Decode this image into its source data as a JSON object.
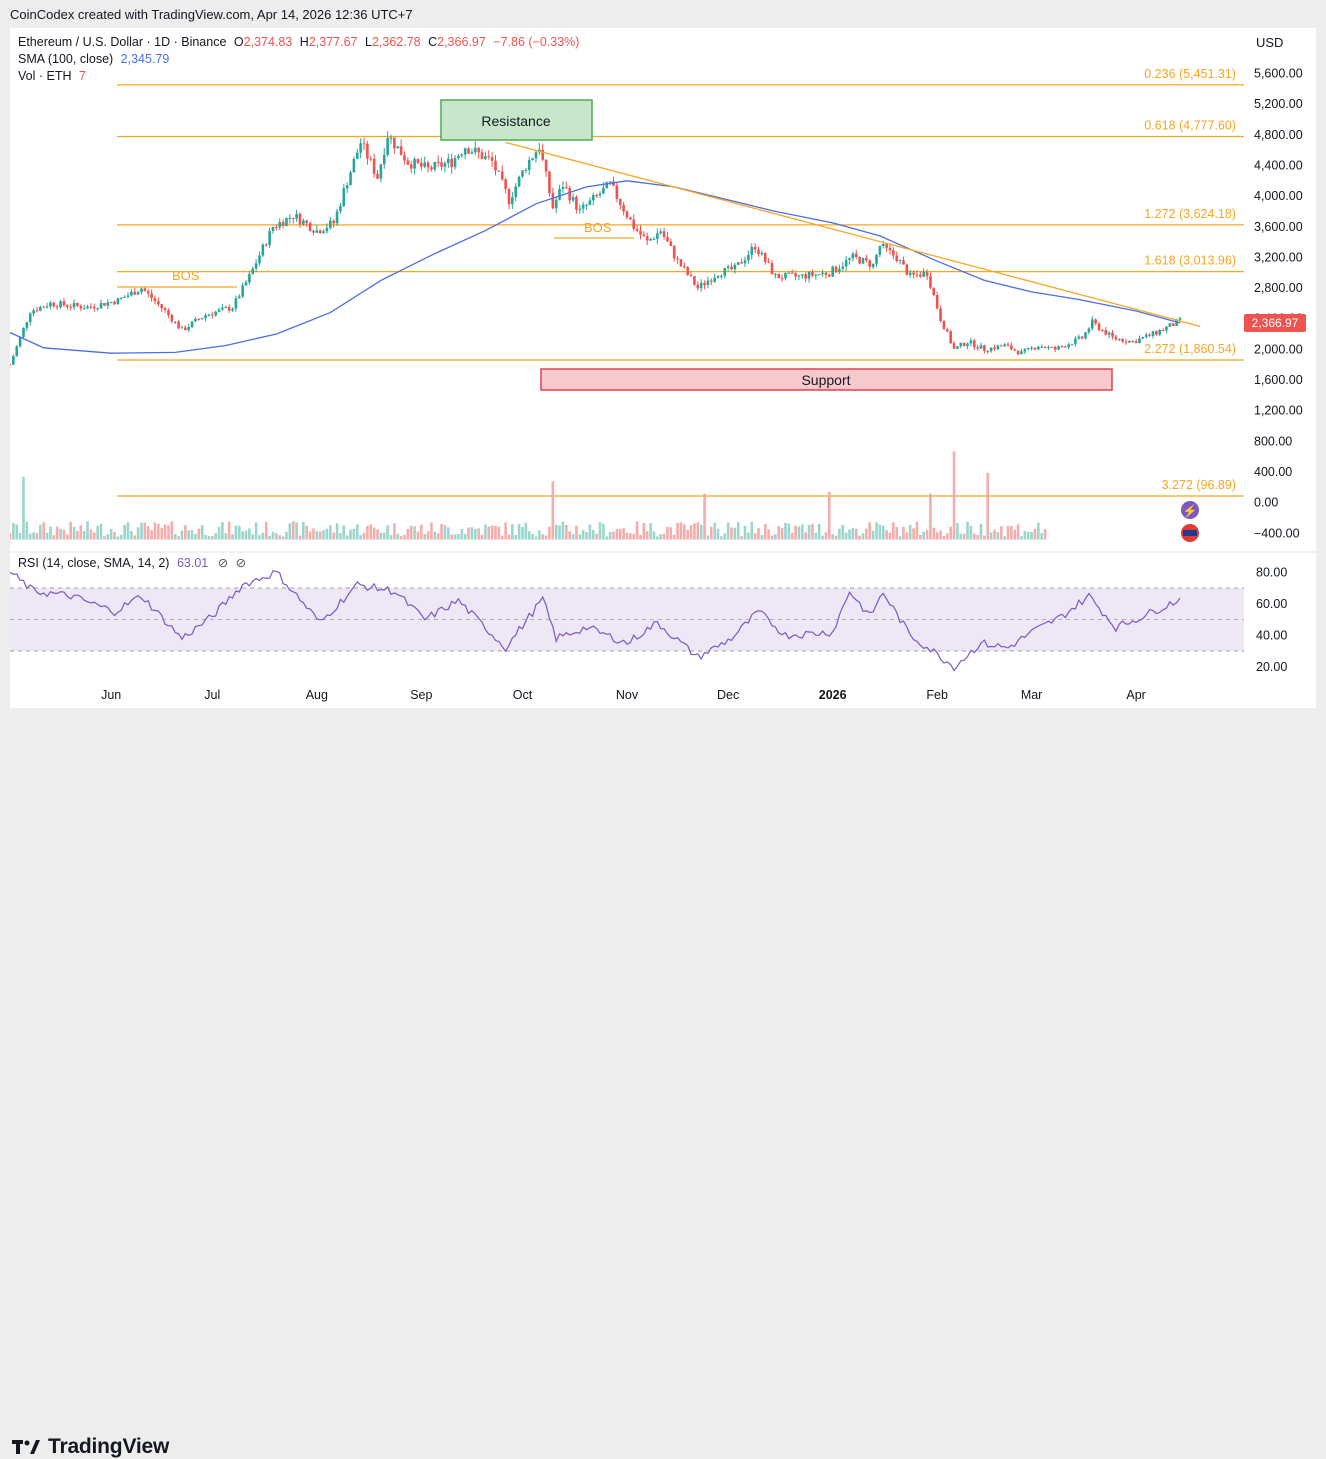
{
  "caption": "CoinCodex created with TradingView.com, Apr 14, 2026 12:36 UTC+7",
  "legend": {
    "symbol": "Ethereum / U.S. Dollar · 1D · Binance",
    "o_label": "O",
    "o_value": "2,374.83",
    "h_label": "H",
    "h_value": "2,377.67",
    "l_label": "L",
    "l_value": "2,362.78",
    "c_label": "C",
    "c_value": "2,366.97",
    "change": "−7.86 (−0.33%)",
    "sma_label": "SMA (100, close)",
    "sma_value": "2,345.79",
    "vol_label": "Vol · ETH",
    "vol_value": "7"
  },
  "currency": "USD",
  "price_tag": "2,366.97",
  "rsi_legend": {
    "label": "RSI (14, close, SMA, 14, 2)",
    "value": "63.01"
  },
  "fib_levels": [
    {
      "label": "0.236 (5,451.31)",
      "value": 5451.31
    },
    {
      "label": "0.618 (4,777.60)",
      "value": 4777.6
    },
    {
      "label": "1.272 (3,624.18)",
      "value": 3624.18
    },
    {
      "label": "1.618 (3,013.96)",
      "value": 3013.96
    },
    {
      "label": "2.272 (1,860.54)",
      "value": 1860.54
    }
  ],
  "vol_fib": {
    "label": "3.272 (96.89)",
    "value": 96.89
  },
  "annotations": {
    "resistance": "Resistance",
    "support": "Support",
    "bos1": "BOS",
    "bos2": "BOS"
  },
  "colors": {
    "up": "#26a69a",
    "down": "#ef5350",
    "sma": "#4a6fe3",
    "fib": "#f5a623",
    "rsi": "#7e57c2",
    "support_fill": "#f8c9cc",
    "support_border": "#e0414f",
    "resistance_fill": "#c8e6c9",
    "resistance_border": "#4caf50"
  },
  "logo_text": "TradingView",
  "chart_data": {
    "type": "candlestick",
    "instrument": "ETH/USD",
    "y_ticks": [
      "5,600.00",
      "5,200.00",
      "4,800.00",
      "4,400.00",
      "4,000.00",
      "3,600.00",
      "3,200.00",
      "2,800.00",
      "2,400.00",
      "2,000.00",
      "1,600.00",
      "1,200.00",
      "800.00",
      "400.00",
      "0.00",
      "−400.00"
    ],
    "ylim": [
      -400,
      5600
    ],
    "rsi_ticks": [
      "80.00",
      "60.00",
      "40.00",
      "20.00"
    ],
    "rsi_levels": [
      70,
      50,
      30
    ],
    "x_ticks": [
      {
        "label": "Jun",
        "date": "2025-06-01"
      },
      {
        "label": "Jul",
        "date": "2025-07-01"
      },
      {
        "label": "Aug",
        "date": "2025-08-01"
      },
      {
        "label": "Sep",
        "date": "2025-09-01"
      },
      {
        "label": "Oct",
        "date": "2025-10-01"
      },
      {
        "label": "Nov",
        "date": "2025-11-01"
      },
      {
        "label": "Dec",
        "date": "2025-12-01"
      },
      {
        "label": "2026",
        "date": "2026-01-01",
        "bold": true
      },
      {
        "label": "Feb",
        "date": "2026-02-01"
      },
      {
        "label": "Mar",
        "date": "2026-03-01"
      },
      {
        "label": "Apr",
        "date": "2026-04-01"
      }
    ],
    "xlim": [
      "2025-05-02",
      "2026-05-03"
    ],
    "price_path": [
      [
        "2025-05-02",
        1800
      ],
      [
        "2025-05-08",
        2500
      ],
      [
        "2025-05-14",
        2600
      ],
      [
        "2025-05-25",
        2550
      ],
      [
        "2025-06-03",
        2640
      ],
      [
        "2025-06-10",
        2800
      ],
      [
        "2025-06-17",
        2500
      ],
      [
        "2025-06-22",
        2250
      ],
      [
        "2025-06-29",
        2450
      ],
      [
        "2025-07-07",
        2550
      ],
      [
        "2025-07-12",
        2950
      ],
      [
        "2025-07-19",
        3600
      ],
      [
        "2025-07-25",
        3750
      ],
      [
        "2025-08-01",
        3550
      ],
      [
        "2025-08-06",
        3650
      ],
      [
        "2025-08-10",
        4200
      ],
      [
        "2025-08-14",
        4700
      ],
      [
        "2025-08-19",
        4250
      ],
      [
        "2025-08-22",
        4800
      ],
      [
        "2025-08-28",
        4450
      ],
      [
        "2025-09-03",
        4350
      ],
      [
        "2025-09-10",
        4450
      ],
      [
        "2025-09-14",
        4650
      ],
      [
        "2025-09-22",
        4450
      ],
      [
        "2025-09-27",
        3950
      ],
      [
        "2025-10-02",
        4400
      ],
      [
        "2025-10-06",
        4650
      ],
      [
        "2025-10-10",
        3850
      ],
      [
        "2025-10-13",
        4150
      ],
      [
        "2025-10-18",
        3800
      ],
      [
        "2025-10-27",
        4150
      ],
      [
        "2025-11-03",
        3600
      ],
      [
        "2025-11-07",
        3400
      ],
      [
        "2025-11-11",
        3550
      ],
      [
        "2025-11-16",
        3150
      ],
      [
        "2025-11-22",
        2800
      ],
      [
        "2025-11-28",
        3000
      ],
      [
        "2025-12-03",
        3050
      ],
      [
        "2025-12-09",
        3350
      ],
      [
        "2025-12-15",
        2950
      ],
      [
        "2025-12-22",
        2950
      ],
      [
        "2025-12-31",
        3000
      ],
      [
        "2026-01-07",
        3200
      ],
      [
        "2026-01-13",
        3100
      ],
      [
        "2026-01-15",
        3350
      ],
      [
        "2026-01-20",
        3200
      ],
      [
        "2026-01-24",
        2950
      ],
      [
        "2026-01-29",
        3000
      ],
      [
        "2026-02-02",
        2400
      ],
      [
        "2026-02-06",
        2000
      ],
      [
        "2026-02-10",
        2100
      ],
      [
        "2026-02-15",
        2000
      ],
      [
        "2026-02-21",
        2050
      ],
      [
        "2026-02-26",
        1950
      ],
      [
        "2026-03-03",
        2050
      ],
      [
        "2026-03-08",
        2000
      ],
      [
        "2026-03-16",
        2150
      ],
      [
        "2026-03-19",
        2350
      ],
      [
        "2026-03-25",
        2150
      ],
      [
        "2026-03-31",
        2100
      ],
      [
        "2026-04-06",
        2200
      ],
      [
        "2026-04-14",
        2366.97
      ]
    ],
    "sma_path": [
      [
        "2025-05-02",
        2220
      ],
      [
        "2025-05-12",
        2020
      ],
      [
        "2025-06-01",
        1950
      ],
      [
        "2025-06-20",
        1960
      ],
      [
        "2025-07-05",
        2050
      ],
      [
        "2025-07-20",
        2200
      ],
      [
        "2025-08-05",
        2480
      ],
      [
        "2025-08-20",
        2900
      ],
      [
        "2025-09-05",
        3250
      ],
      [
        "2025-09-20",
        3550
      ],
      [
        "2025-10-05",
        3900
      ],
      [
        "2025-10-20",
        4120
      ],
      [
        "2025-11-01",
        4200
      ],
      [
        "2025-11-15",
        4120
      ],
      [
        "2025-12-01",
        3950
      ],
      [
        "2025-12-15",
        3800
      ],
      [
        "2026-01-01",
        3650
      ],
      [
        "2026-01-15",
        3480
      ],
      [
        "2026-02-01",
        3150
      ],
      [
        "2026-02-15",
        2900
      ],
      [
        "2026-03-01",
        2750
      ],
      [
        "2026-03-15",
        2650
      ],
      [
        "2026-04-01",
        2500
      ],
      [
        "2026-04-14",
        2345.79
      ]
    ],
    "trendline": [
      [
        "2025-09-26",
        4700
      ],
      [
        "2026-04-20",
        2300
      ]
    ],
    "volume_spikes": [
      [
        "2025-05-06",
        820
      ],
      [
        "2025-10-10",
        760
      ],
      [
        "2025-11-24",
        600
      ],
      [
        "2025-12-31",
        620
      ],
      [
        "2026-01-30",
        600
      ],
      [
        "2026-02-06",
        1150
      ],
      [
        "2026-02-16",
        870
      ]
    ],
    "rsi_path": [
      [
        "2025-05-02",
        80
      ],
      [
        "2025-05-09",
        68
      ],
      [
        "2025-05-20",
        65
      ],
      [
        "2025-06-02",
        55
      ],
      [
        "2025-06-10",
        65
      ],
      [
        "2025-06-22",
        38
      ],
      [
        "2025-07-01",
        52
      ],
      [
        "2025-07-10",
        72
      ],
      [
        "2025-07-20",
        80
      ],
      [
        "2025-08-02",
        48
      ],
      [
        "2025-08-13",
        72
      ],
      [
        "2025-08-24",
        68
      ],
      [
        "2025-09-02",
        50
      ],
      [
        "2025-09-12",
        62
      ],
      [
        "2025-09-26",
        32
      ],
      [
        "2025-10-07",
        63
      ],
      [
        "2025-10-11",
        38
      ],
      [
        "2025-10-20",
        45
      ],
      [
        "2025-11-01",
        35
      ],
      [
        "2025-11-10",
        48
      ],
      [
        "2025-11-22",
        26
      ],
      [
        "2025-12-02",
        38
      ],
      [
        "2025-12-10",
        55
      ],
      [
        "2025-12-18",
        40
      ],
      [
        "2026-01-01",
        42
      ],
      [
        "2026-01-06",
        68
      ],
      [
        "2026-01-12",
        52
      ],
      [
        "2026-01-16",
        67
      ],
      [
        "2026-01-24",
        40
      ],
      [
        "2026-02-01",
        28
      ],
      [
        "2026-02-06",
        20
      ],
      [
        "2026-02-14",
        35
      ],
      [
        "2026-02-22",
        32
      ],
      [
        "2026-03-01",
        42
      ],
      [
        "2026-03-10",
        52
      ],
      [
        "2026-03-18",
        65
      ],
      [
        "2026-03-26",
        45
      ],
      [
        "2026-04-03",
        52
      ],
      [
        "2026-04-14",
        63.01
      ]
    ]
  }
}
